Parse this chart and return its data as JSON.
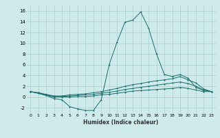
{
  "title": "",
  "xlabel": "Humidex (Indice chaleur)",
  "bg_color": "#ceeaea",
  "grid_color": "#aacece",
  "line_color": "#1a6e6e",
  "xlim": [
    -0.5,
    23.5
  ],
  "ylim": [
    -3,
    17
  ],
  "xticks": [
    0,
    1,
    2,
    3,
    4,
    5,
    6,
    7,
    8,
    9,
    10,
    11,
    12,
    13,
    14,
    15,
    16,
    17,
    18,
    19,
    20,
    21,
    22,
    23
  ],
  "yticks": [
    -2,
    0,
    2,
    4,
    6,
    8,
    10,
    12,
    14,
    16
  ],
  "line1_x": [
    0,
    1,
    2,
    3,
    4,
    5,
    6,
    7,
    8,
    9,
    10,
    11,
    12,
    13,
    14,
    15,
    16,
    17,
    18,
    19,
    20,
    21,
    22,
    23
  ],
  "line1_y": [
    1.0,
    0.7,
    0.3,
    -0.3,
    -0.5,
    -1.8,
    -2.2,
    -2.5,
    -2.5,
    -0.5,
    6.0,
    10.2,
    13.9,
    14.3,
    15.8,
    12.8,
    8.0,
    4.2,
    3.8,
    4.2,
    3.5,
    1.8,
    1.2,
    1.0
  ],
  "line2_x": [
    0,
    1,
    2,
    3,
    4,
    5,
    6,
    7,
    8,
    9,
    10,
    11,
    12,
    13,
    14,
    15,
    16,
    17,
    18,
    19,
    20,
    21,
    22,
    23
  ],
  "line2_y": [
    1.0,
    0.8,
    0.5,
    0.2,
    0.2,
    0.4,
    0.5,
    0.6,
    0.8,
    1.0,
    1.3,
    1.6,
    2.0,
    2.3,
    2.5,
    2.8,
    3.0,
    3.2,
    3.4,
    3.8,
    3.2,
    2.6,
    1.5,
    1.0
  ],
  "line3_x": [
    0,
    1,
    2,
    3,
    4,
    5,
    6,
    7,
    8,
    9,
    10,
    11,
    12,
    13,
    14,
    15,
    16,
    17,
    18,
    19,
    20,
    21,
    22,
    23
  ],
  "line3_y": [
    1.0,
    0.8,
    0.4,
    0.1,
    0.1,
    0.2,
    0.3,
    0.4,
    0.5,
    0.7,
    0.9,
    1.1,
    1.4,
    1.6,
    1.8,
    2.0,
    2.2,
    2.4,
    2.6,
    2.8,
    2.5,
    2.0,
    1.3,
    1.0
  ],
  "line4_x": [
    0,
    1,
    2,
    3,
    4,
    5,
    6,
    7,
    8,
    9,
    10,
    11,
    12,
    13,
    14,
    15,
    16,
    17,
    18,
    19,
    20,
    21,
    22,
    23
  ],
  "line4_y": [
    1.0,
    0.7,
    0.3,
    0.0,
    0.0,
    0.0,
    0.1,
    0.1,
    0.2,
    0.4,
    0.5,
    0.7,
    0.9,
    1.1,
    1.2,
    1.3,
    1.4,
    1.5,
    1.6,
    1.8,
    1.6,
    1.3,
    1.0,
    1.0
  ]
}
